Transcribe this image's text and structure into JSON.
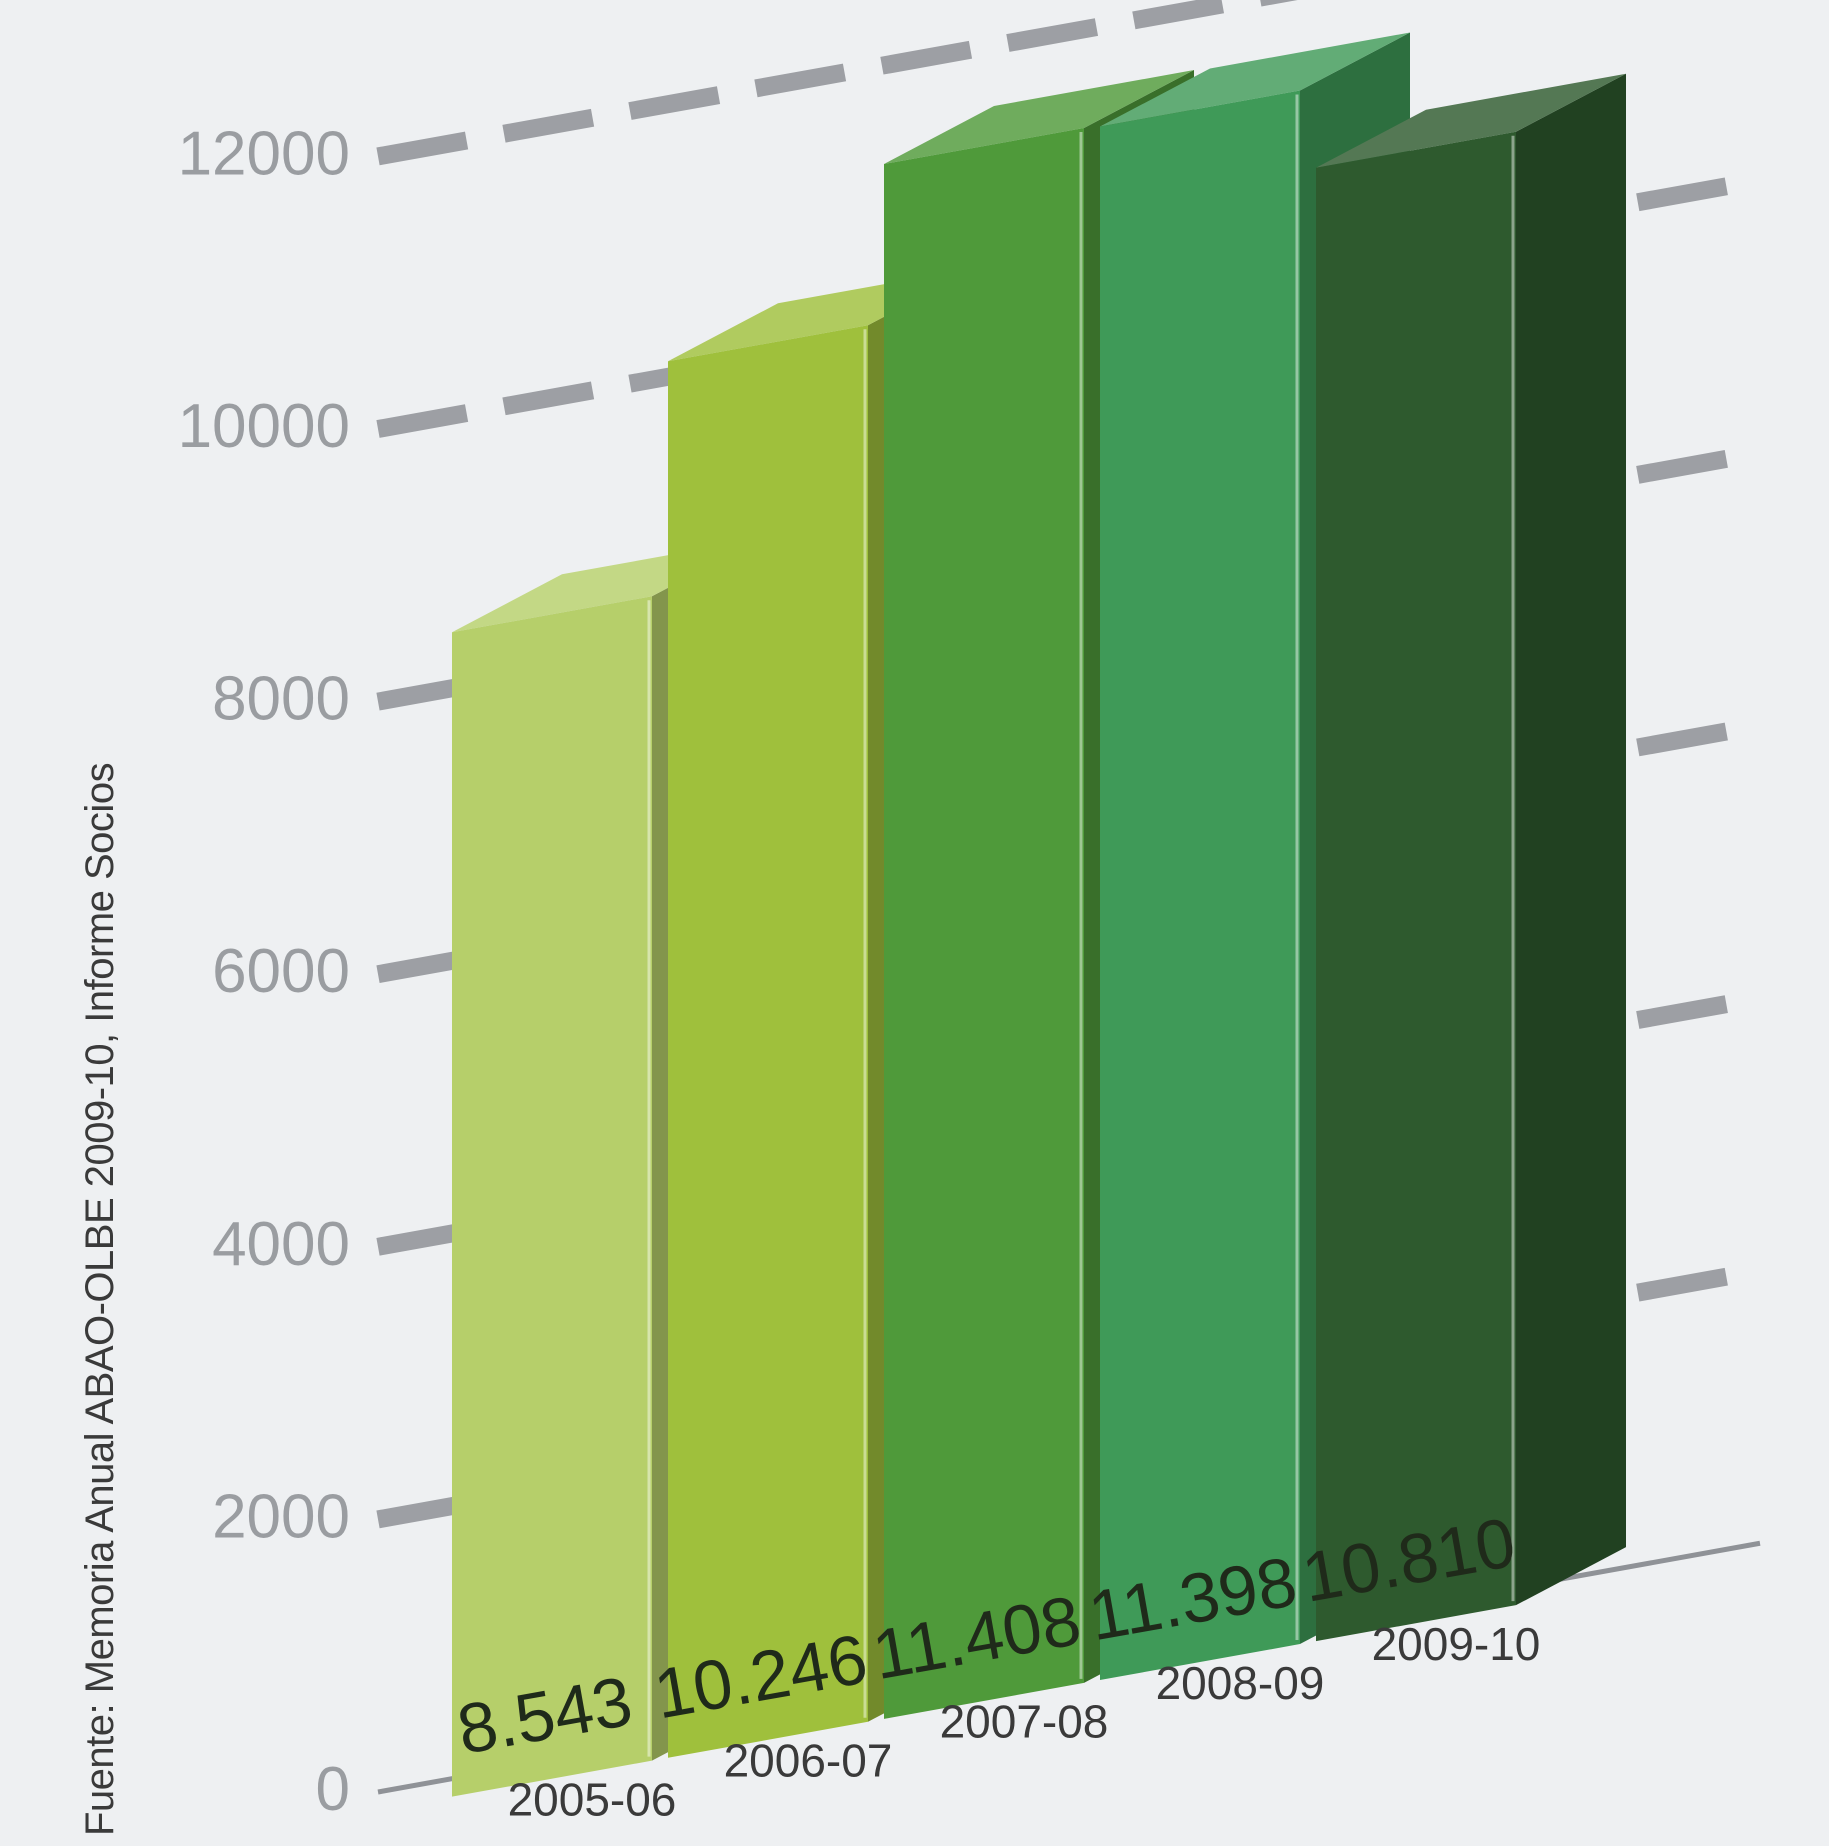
{
  "chart_data": {
    "type": "bar",
    "categories": [
      "2005-06",
      "2006-07",
      "2007-08",
      "2008-09",
      "2009-10"
    ],
    "values": [
      8543,
      10246,
      11408,
      11398,
      10810
    ],
    "value_labels": [
      "8.543",
      "10.246",
      "11.408",
      "11.398",
      "10.810"
    ],
    "y_ticks": [
      0,
      2000,
      4000,
      6000,
      8000,
      10000,
      12000
    ],
    "y_tick_labels": [
      "0",
      "2000",
      "4000",
      "6000",
      "8000",
      "10000",
      "12000"
    ],
    "ylim": [
      0,
      12000
    ],
    "grid": true,
    "source": "Fuente: Memoria Anual ABAO-OLBE 2009-10, Informe Socios",
    "colors": {
      "background": "#eef0f2",
      "grid": "#8f9297",
      "axis": "#8f9297",
      "tick_label": "#9a9da1",
      "category_label": "#3a3a3a",
      "value_label": "#1f2a1a",
      "bars": [
        "#b6cf6a",
        "#9fc03c",
        "#4f9a3a",
        "#3f9a58",
        "#2e5a2e"
      ]
    }
  }
}
